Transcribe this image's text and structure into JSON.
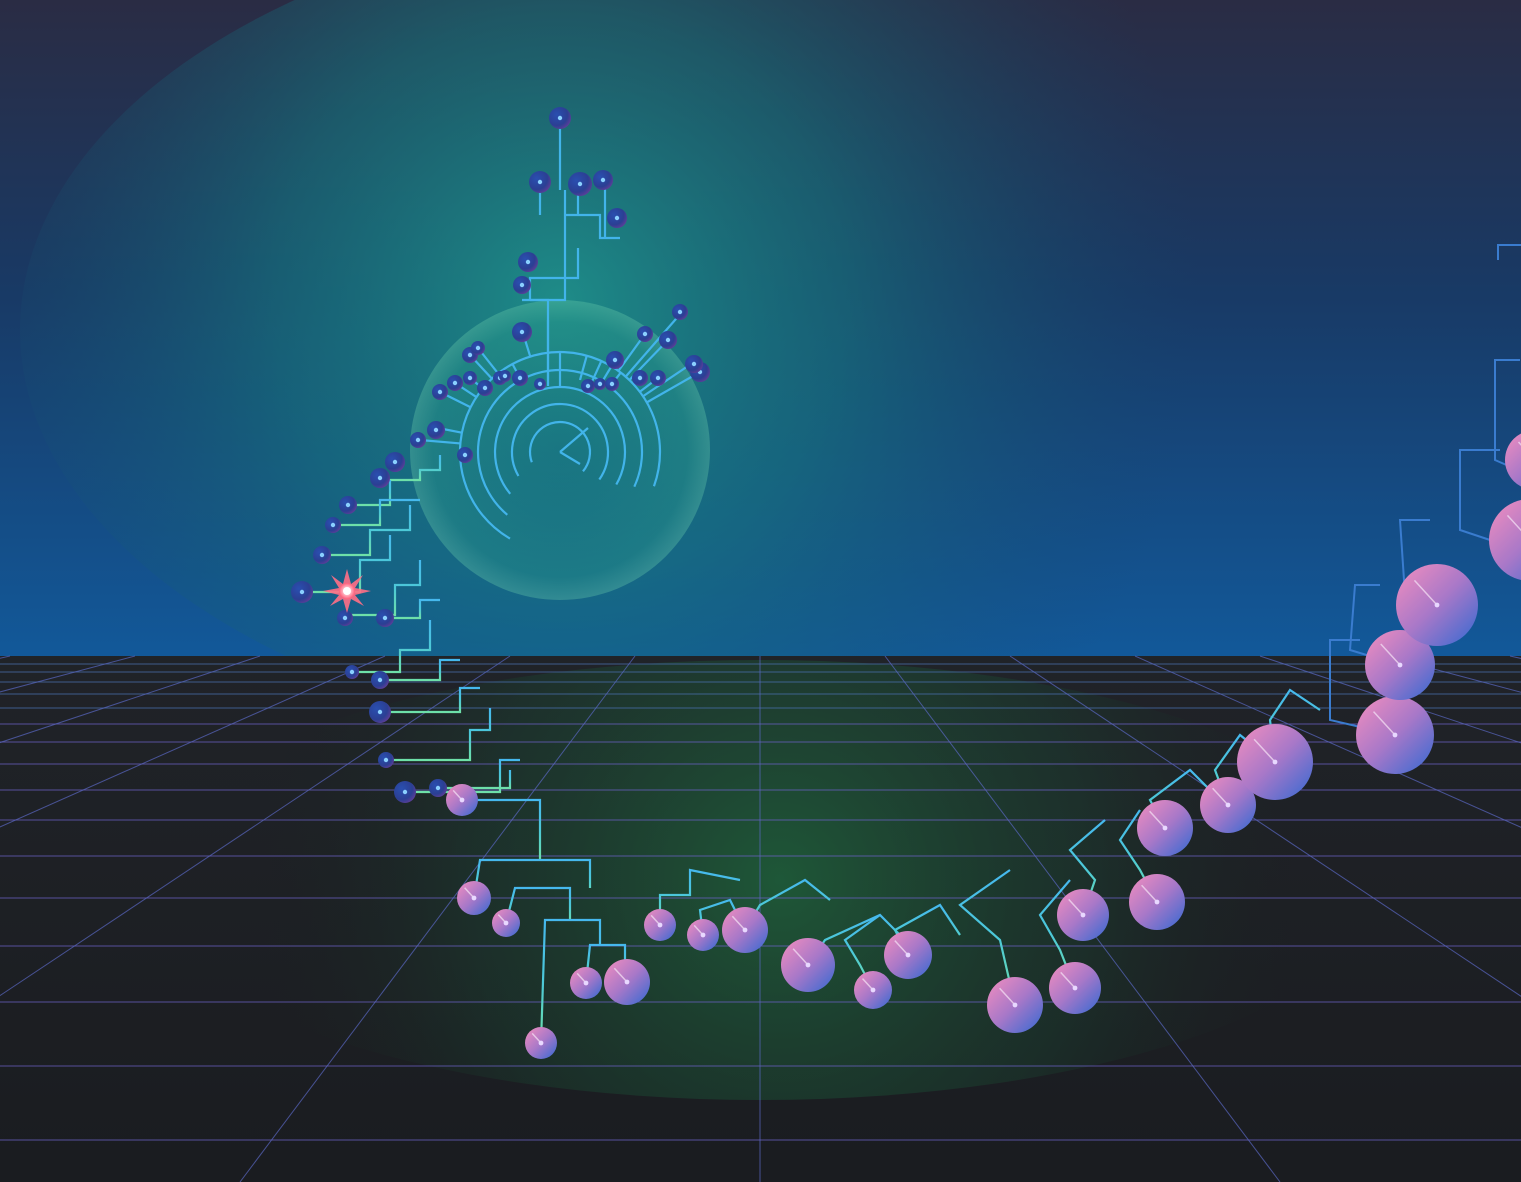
{
  "illustration": {
    "palette": {
      "sky_top": "#2b2f4a",
      "sky_mid": "#173f6e",
      "sky_horizon": "#1460a0",
      "halo_glow": "#1a8a86",
      "floor": "#1d2024",
      "floor_glow": "#1c5a3a",
      "grid_line": "#6a66c8",
      "grid_line_far": "#3c8ab0",
      "branch_blue": "#3fb3e8",
      "branch_green": "#5fd6a6",
      "node_dark_center": "#1f3a8c",
      "node_dark_edge": "#5a3f9a",
      "node_pink": "#d67ab8",
      "node_blue": "#4a6bd0",
      "root_spark": "#ff6f86"
    },
    "elements": {
      "circular_tree": "radial-phylogenetic-tree",
      "linear_tree": "curved-branching-tree",
      "spheres": "gradient-node-spheres",
      "grid": "perspective-floor-grid",
      "spark": "root-starburst"
    }
  }
}
